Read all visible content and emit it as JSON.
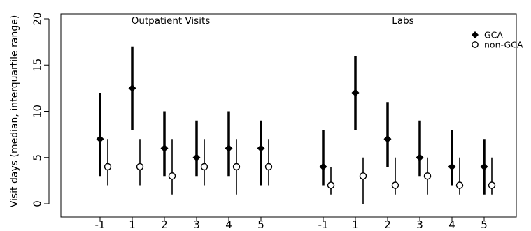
{
  "chart_data": {
    "type": "scatter",
    "title": "",
    "ylabel": "Visit days (median, interquartile range)",
    "xlabel": "",
    "ylim": [
      0,
      20
    ],
    "yticks": [
      0,
      5,
      10,
      15,
      20
    ],
    "grid": false,
    "legend_position": "top-right",
    "legend": [
      {
        "name": "GCA",
        "marker": "filled-diamond"
      },
      {
        "name": "non-GCA",
        "marker": "open-circle"
      }
    ],
    "panels": [
      {
        "title": "Outpatient Visits",
        "categories": [
          "-1",
          "1",
          "2",
          "3",
          "4",
          "5"
        ],
        "series": [
          {
            "name": "GCA",
            "median": [
              7,
              12.5,
              6,
              5,
              6,
              6
            ],
            "q1": [
              3,
              8,
              3,
              3,
              3,
              2
            ],
            "q3": [
              12,
              17,
              10,
              9,
              10,
              9
            ]
          },
          {
            "name": "non-GCA",
            "median": [
              4,
              4,
              3,
              4,
              4,
              4
            ],
            "q1": [
              2,
              2,
              1,
              2,
              1,
              2
            ],
            "q3": [
              7,
              7,
              7,
              7,
              7,
              7
            ]
          }
        ]
      },
      {
        "title": "Labs",
        "categories": [
          "-1",
          "1",
          "2",
          "3",
          "4",
          "5"
        ],
        "series": [
          {
            "name": "GCA",
            "median": [
              4,
              12,
              7,
              5,
              4,
              4
            ],
            "q1": [
              2,
              8,
              4,
              3,
              2,
              1
            ],
            "q3": [
              8,
              16,
              11,
              9,
              8,
              7
            ]
          },
          {
            "name": "non-GCA",
            "median": [
              2,
              3,
              2,
              3,
              2,
              2
            ],
            "q1": [
              1,
              0,
              1,
              1,
              1,
              1
            ],
            "q3": [
              4,
              5,
              5,
              5,
              5,
              5
            ]
          }
        ]
      }
    ]
  }
}
